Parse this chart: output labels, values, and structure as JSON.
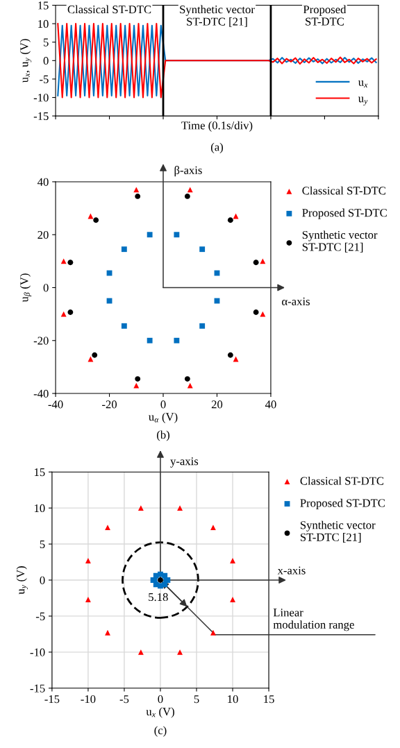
{
  "chart_data": [
    {
      "type": "line",
      "xlabel": "Time (0.1s/div)",
      "ylabel": "u$_{x}$, u$_{y}$ (V)",
      "tick_labels": "y",
      "legend": "bottom right",
      "categories": [
        null,
        null,
        null,
        null,
        null,
        null,
        null,
        null,
        null,
        null,
        null,
        null,
        null,
        null,
        null,
        null,
        null,
        null,
        null,
        null,
        null,
        null,
        null,
        null,
        null,
        null,
        null,
        null,
        null,
        null,
        null,
        null,
        null,
        null,
        null,
        null,
        null,
        null,
        null,
        null,
        null,
        null,
        null,
        null,
        null,
        null,
        null,
        null,
        null,
        null,
        null,
        null,
        null,
        null,
        null,
        null,
        null,
        null,
        null,
        null,
        null,
        null,
        null,
        null,
        null,
        null,
        null,
        null,
        null,
        null,
        null,
        null
      ],
      "series": [
        {
          "name": "u$_{x}$",
          "color": "#0070c0",
          "values": [
            -9.5,
            9.5,
            -9.5,
            9.5,
            -9.5,
            9.5,
            -9.5,
            9.5,
            -9.5,
            9.5,
            -9.5,
            9.5,
            -9.5,
            9.5,
            -9.5,
            9.5,
            -9.5,
            9.5,
            -9.5,
            9.5,
            -9.5,
            9.5,
            -9.5,
            9.5,
            0,
            0,
            0,
            0,
            0,
            0,
            0,
            0,
            0,
            0,
            0,
            0,
            0,
            0,
            0,
            0,
            0,
            0,
            0,
            0,
            0,
            0,
            0,
            0,
            0.5,
            -0.6,
            0.8,
            -0.4,
            0.3,
            -0.7,
            0.6,
            -0.5,
            0.7,
            -0.3,
            0.4,
            -0.8,
            0.5,
            -0.6,
            0.3,
            -0.5,
            0.8,
            -0.4,
            0.6,
            -0.7,
            0.4,
            -0.3,
            0.7,
            -0.5
          ]
        },
        {
          "name": "u$_{y}$",
          "color": "#ff0000",
          "values": [
            10,
            -10,
            10,
            -10,
            10,
            -10,
            10,
            -10,
            10,
            -10,
            10,
            -10,
            10,
            -10,
            10,
            -10,
            10,
            -10,
            10,
            -10,
            10,
            -10,
            10,
            -10,
            0,
            0,
            0,
            0,
            0,
            0,
            0,
            0,
            0,
            0,
            0,
            0,
            0,
            0,
            0,
            0,
            0,
            0,
            0,
            0,
            0,
            0,
            0,
            0,
            -0.4,
            0.6,
            -0.8,
            0.5,
            -0.3,
            0.7,
            -0.9,
            0.4,
            -0.6,
            0.8,
            -0.5,
            0.3,
            -0.7,
            0.6,
            -0.4,
            0.9,
            -0.5,
            0.3,
            -0.8,
            0.6,
            -0.3,
            0.5,
            -0.6,
            0.4
          ]
        }
      ],
      "ylim": [
        -15,
        15
      ],
      "yticks": [
        -15,
        -10,
        -5,
        0,
        5,
        10,
        15
      ],
      "annotations": [
        "Classical ST-DTC",
        "Synthetic vector\nST-DTC [21]",
        "Proposed\nST-DTC",
        "(a)"
      ]
    },
    {
      "type": "scatter",
      "xlabel": "u$_{α}$ (V)",
      "ylabel": "u$_{β}$ (V)",
      "legend": "right",
      "xlim": [
        -40,
        40
      ],
      "xticks": [
        -40,
        -20,
        0,
        20,
        40
      ],
      "ylim": [
        -40,
        40
      ],
      "yticks": [
        -40,
        -20,
        0,
        20,
        40
      ],
      "series": [
        {
          "name": "Classical ST-DTC",
          "color": "#ff0000",
          "marker": "triangle",
          "x": [
            -10,
            10,
            -27,
            27,
            -37,
            37,
            -37,
            37,
            -27,
            27,
            -10,
            10
          ],
          "values": [
            37,
            37,
            27,
            27,
            10,
            10,
            -10,
            -10,
            -27,
            -27,
            -37,
            -37
          ]
        },
        {
          "name": "Proposed ST-DTC",
          "color": "#0070c0",
          "marker": "square",
          "x": [
            -5,
            5,
            -14.5,
            14.5,
            -20,
            20,
            -20,
            20,
            -14.5,
            14.5,
            -5,
            5
          ],
          "values": [
            20,
            20,
            14.5,
            14.5,
            5.5,
            5.5,
            -5,
            -5,
            -14.5,
            -14.5,
            -20,
            -20
          ]
        },
        {
          "name": "Synthetic vector\nST-DTC [21]",
          "color": "#000000",
          "marker": "circle",
          "x": [
            -9.5,
            9,
            -25,
            25,
            -34.5,
            34.5,
            -34.5,
            34.5,
            -25.5,
            25,
            -9.5,
            9
          ],
          "values": [
            34.5,
            34.5,
            25.5,
            25.5,
            9.5,
            9.5,
            -9.3,
            -9.3,
            -25.5,
            -25.5,
            -34.5,
            -34.5
          ]
        }
      ],
      "annotations": [
        "β-axis",
        "α-axis",
        "(b)"
      ]
    },
    {
      "type": "scatter",
      "xlabel": "u$_{x}$ (V)",
      "ylabel": "u$_{y}$ (V)",
      "legend": "right",
      "grid": true,
      "xlim": [
        -15,
        15
      ],
      "xticks": [
        -15,
        -10,
        -5,
        0,
        5,
        10,
        15
      ],
      "ylim": [
        -15,
        15
      ],
      "yticks": [
        -15,
        -10,
        -5,
        0,
        5,
        10,
        15
      ],
      "series": [
        {
          "name": "Classical ST-DTC",
          "color": "#ff0000",
          "marker": "triangle",
          "x": [
            -2.7,
            2.7,
            -7.3,
            7.3,
            -10,
            10,
            -10,
            10,
            -7.3,
            7.3,
            -2.7,
            2.7
          ],
          "values": [
            10,
            10,
            7.3,
            7.3,
            2.7,
            2.7,
            -2.7,
            -2.7,
            -7.3,
            -7.3,
            -10,
            -10
          ]
        },
        {
          "name": "Proposed ST-DTC",
          "color": "#0070c0",
          "marker": "square",
          "x": [
            0,
            0.8,
            0,
            -0.8,
            0.6,
            -0.6,
            0.6,
            -0.6,
            1,
            -1
          ],
          "values": [
            0.8,
            0,
            -0.8,
            0,
            0.6,
            0.6,
            -0.6,
            -0.6,
            0,
            0
          ]
        },
        {
          "name": "Synthetic vector\nST-DTC [21]",
          "color": "#000000",
          "marker": "circle",
          "x": [
            0
          ],
          "values": [
            0
          ]
        }
      ],
      "annotations": [
        "y-axis",
        "x-axis",
        {
          "text": "5.18",
          "x": 3.7,
          "y": -3.7
        },
        "Linear\nmodulation range",
        "(c)"
      ]
    }
  ]
}
